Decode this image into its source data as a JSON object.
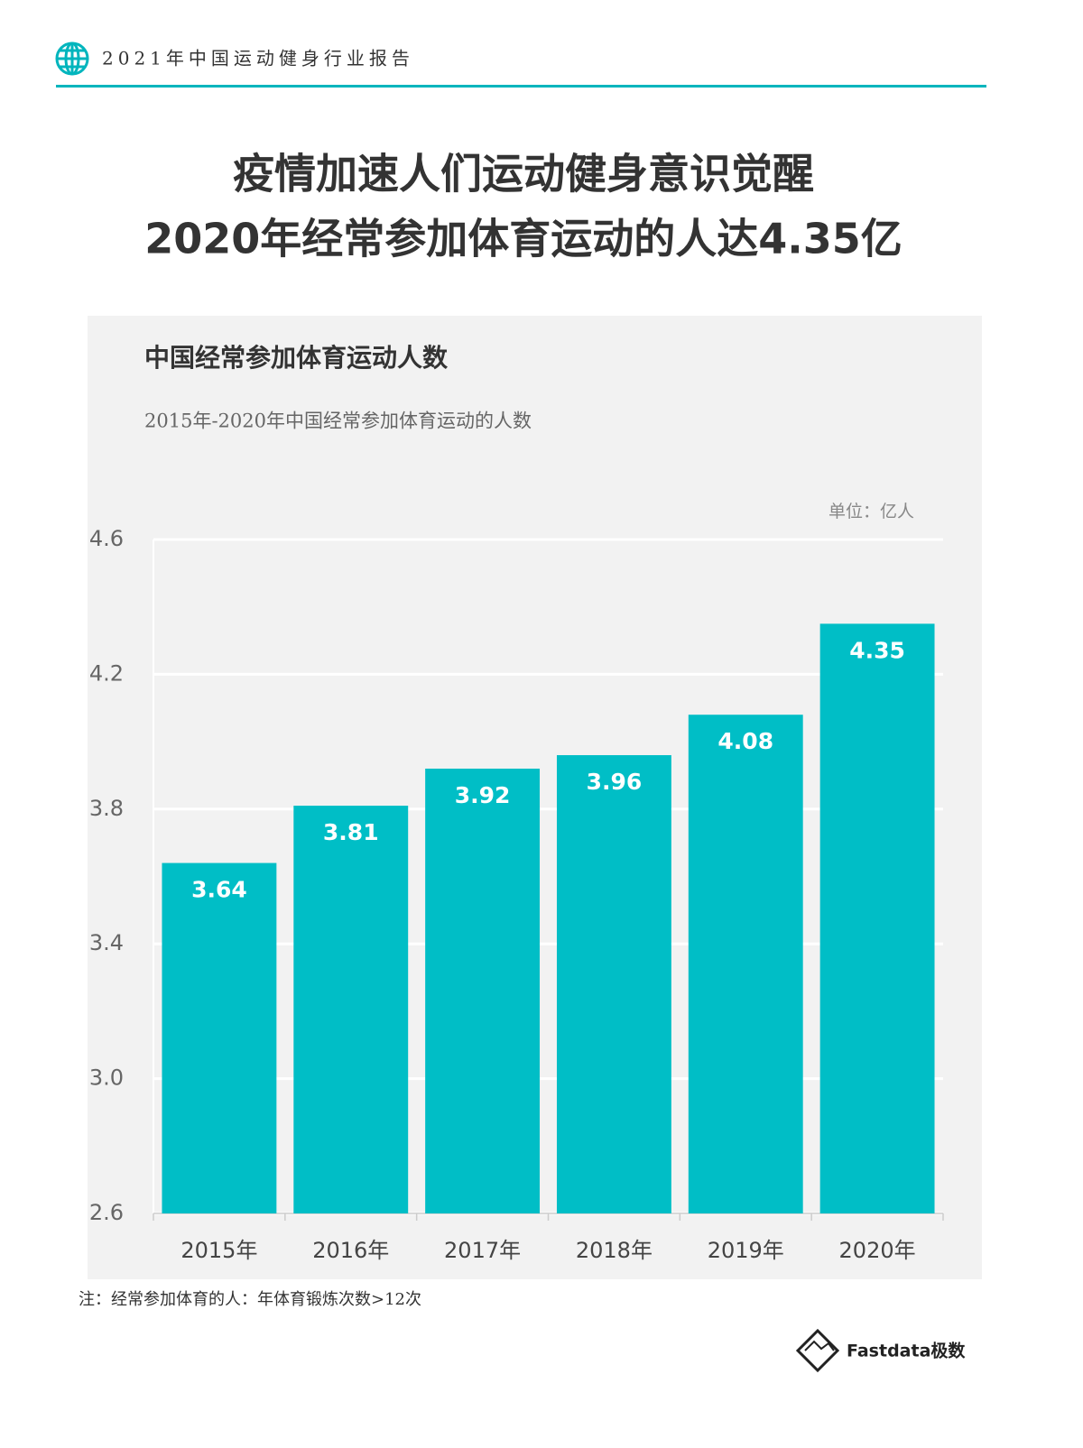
{
  "header": {
    "title": "2021年中国运动健身行业报告"
  },
  "headline": [
    "疫情加速人们运动健身意识觉醒",
    "2020年经常参加体育运动的人达4.35亿"
  ],
  "chart_data": {
    "type": "bar",
    "title": "中国经常参加体育运动人数",
    "subtitle": "2015年-2020年中国经常参加体育运动的人数",
    "unit": "单位：亿人",
    "categories": [
      "2015年",
      "2016年",
      "2017年",
      "2018年",
      "2019年",
      "2020年"
    ],
    "values": [
      3.64,
      3.81,
      3.92,
      3.96,
      4.08,
      4.35
    ],
    "color": "#00bec6",
    "ylim": [
      2.6,
      4.6
    ],
    "yticks": [
      2.6,
      {
        "value": 3,
        "label": "3.0"
      },
      3.4,
      3.8,
      4.2,
      4.6
    ],
    "grid": true
  },
  "note": "注：经常参加体育的人：年体育锻炼次数>12次",
  "logo": "Fastdata极数"
}
